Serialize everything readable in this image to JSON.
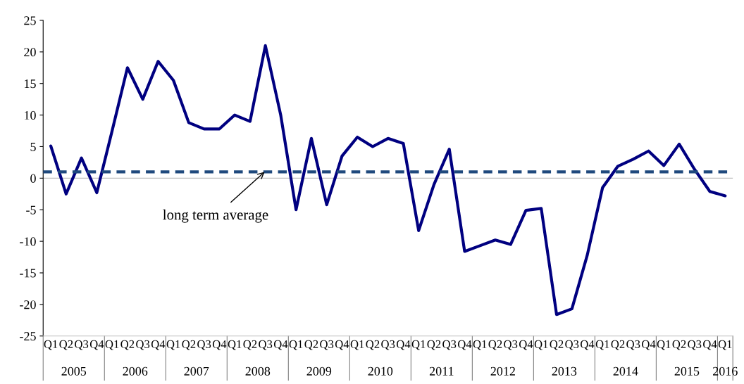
{
  "chart_data": {
    "type": "line",
    "categories": [
      "Q1",
      "Q2",
      "Q3",
      "Q4",
      "Q1",
      "Q2",
      "Q3",
      "Q4",
      "Q1",
      "Q2",
      "Q3",
      "Q4",
      "Q1",
      "Q2",
      "Q3",
      "Q4",
      "Q1",
      "Q2",
      "Q3",
      "Q4",
      "Q1",
      "Q2",
      "Q3",
      "Q4",
      "Q1",
      "Q2",
      "Q3",
      "Q4",
      "Q1",
      "Q2",
      "Q3",
      "Q4",
      "Q1",
      "Q2",
      "Q3",
      "Q4",
      "Q1",
      "Q2",
      "Q3",
      "Q4",
      "Q1",
      "Q2",
      "Q3",
      "Q4",
      "Q1"
    ],
    "series": [
      {
        "color": "#000080",
        "values": [
          5.1,
          -2.5,
          3.2,
          -2.3,
          7.5,
          17.5,
          12.5,
          18.5,
          15.5,
          8.8,
          7.8,
          7.8,
          10,
          9,
          21,
          10,
          -5,
          6.3,
          -4.2,
          3.5,
          6.5,
          5,
          6.3,
          5.5,
          -8.3,
          -1,
          4.6,
          -11.6,
          -10.7,
          -9.8,
          -10.5,
          -5.1,
          -4.8,
          -21.6,
          -20.7,
          -12.2,
          -1.5,
          1.9,
          3.0,
          4.3,
          2.0,
          5.4,
          1.4,
          -2.1,
          -2.8
        ]
      }
    ],
    "ylim": [
      -25,
      25
    ],
    "yticks": [
      -25,
      -20,
      -15,
      -10,
      -5,
      0,
      5,
      10,
      15,
      20,
      25
    ],
    "ref_lines": [
      {
        "axis": "y",
        "value": 0,
        "color": "#bfbfbf",
        "line_style": "solid"
      },
      {
        "axis": "y",
        "value": 1,
        "label": "long term average",
        "color": "#1f497d",
        "line_style": "dashed"
      }
    ],
    "annotations": [
      "2005",
      "2006",
      "2007",
      "2008",
      "2009",
      "2010",
      "2011",
      "2012",
      "2013",
      "2014",
      "2015",
      "2016"
    ],
    "grid": false,
    "marker": "none",
    "line_style": "solid"
  }
}
